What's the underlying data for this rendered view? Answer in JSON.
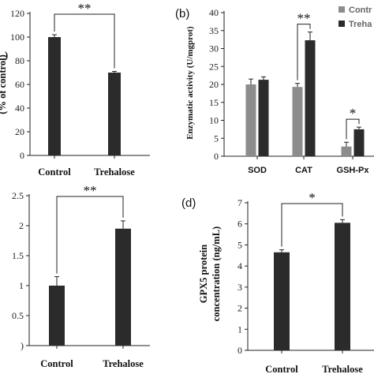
{
  "chart_data": [
    {
      "id": "a",
      "type": "bar",
      "panel_label": "",
      "ylabel_visible": ")",
      "ylabel_lines": [
        "(% of control)"
      ],
      "categories": [
        "Control",
        "Trehalose"
      ],
      "values": [
        100,
        70
      ],
      "errors": [
        2,
        1
      ],
      "ylim": [
        0,
        120
      ],
      "yticks": [
        0,
        20,
        40,
        60,
        80,
        100,
        120
      ],
      "significance": [
        {
          "from": 0,
          "to": 1,
          "label": "**"
        }
      ],
      "color": "#2b2b2b"
    },
    {
      "id": "b",
      "type": "bar",
      "panel_label": "(b)",
      "ylabel_lines": [
        "Enzymatic activity (U/mgprot)"
      ],
      "categories": [
        "SOD",
        "CAT",
        "GSH-Px"
      ],
      "series": [
        {
          "name": "Control",
          "values": [
            20,
            19.3,
            2.7
          ],
          "errors": [
            1.5,
            1,
            1.2
          ],
          "color": "#8c8c8c"
        },
        {
          "name": "Trehalose",
          "values": [
            21.3,
            32.3,
            7.5
          ],
          "errors": [
            0.8,
            2.3,
            0.6
          ],
          "color": "#2b2b2b"
        }
      ],
      "ylim": [
        0,
        40
      ],
      "yticks": [
        0,
        5,
        10,
        15,
        20,
        25,
        30,
        35,
        40
      ],
      "significance": [
        {
          "category": 1,
          "label": "**"
        },
        {
          "category": 2,
          "label": "*"
        }
      ],
      "legend": {
        "position": "top-right",
        "labels": [
          "Contr",
          "Treha"
        ]
      }
    },
    {
      "id": "c",
      "type": "bar",
      "panel_label": "",
      "categories": [
        "Control",
        "Trehalose"
      ],
      "values": [
        1.0,
        1.95
      ],
      "errors": [
        0.15,
        0.13
      ],
      "ylim": [
        0,
        2.5
      ],
      "yticks": [
        0,
        0.5,
        1,
        1.5,
        2,
        2.5
      ],
      "ytick_labels": [
        ")",
        "0.5",
        "1",
        "1.5",
        "2",
        "2.5"
      ],
      "significance": [
        {
          "from": 0,
          "to": 1,
          "label": "**"
        }
      ],
      "color": "#2b2b2b"
    },
    {
      "id": "d",
      "type": "bar",
      "panel_label": "(d)",
      "ylabel_lines": [
        "GPX5 protein",
        "concentration (ng/mL)"
      ],
      "categories": [
        "Control",
        "Trehalose"
      ],
      "values": [
        4.65,
        6.05
      ],
      "errors": [
        0.12,
        0.15
      ],
      "ylim": [
        0,
        7
      ],
      "yticks": [
        0,
        1,
        2,
        3,
        4,
        5,
        6,
        7
      ],
      "significance": [
        {
          "from": 0,
          "to": 1,
          "label": "*"
        }
      ],
      "color": "#2b2b2b"
    }
  ]
}
